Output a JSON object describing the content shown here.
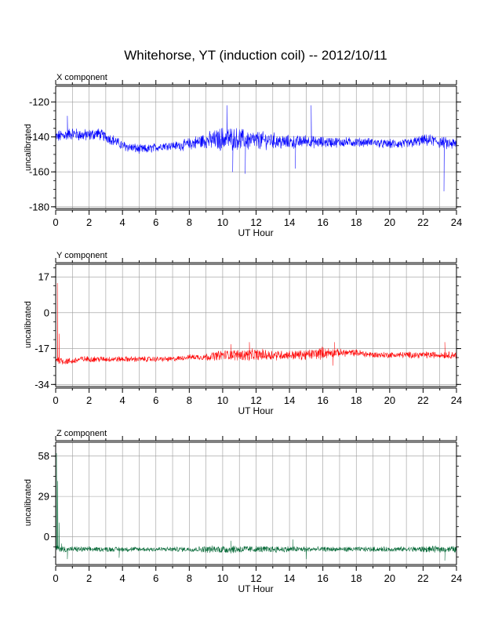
{
  "title": "Whitehorse, YT (induction coil) -- 2012/10/11",
  "chart_data": [
    {
      "type": "line",
      "panel_label": "X component",
      "xlabel": "UT Hour",
      "ylabel": "uncalibrated",
      "xlim": [
        0,
        24
      ],
      "ylim": [
        -181,
        -111
      ],
      "xticks": [
        0,
        2,
        4,
        6,
        8,
        10,
        12,
        14,
        16,
        18,
        20,
        22,
        24
      ],
      "yticks": [
        -120,
        -140,
        -160,
        -180
      ],
      "grid": true,
      "color": "#0000ff",
      "trend": {
        "x": [
          0,
          0.5,
          1,
          1.5,
          2,
          2.5,
          3,
          3.5,
          4,
          4.5,
          5,
          5.5,
          6,
          6.5,
          7,
          7.5,
          8,
          8.5,
          9,
          9.5,
          10,
          10.5,
          11,
          11.5,
          12,
          12.5,
          13,
          13.5,
          14,
          14.5,
          15,
          15.5,
          16,
          16.5,
          17,
          17.5,
          18,
          18.5,
          19,
          19.5,
          20,
          20.5,
          21,
          21.5,
          22,
          22.5,
          23,
          23.5,
          24
        ],
        "y": [
          -140,
          -139,
          -138,
          -139,
          -139,
          -138,
          -140,
          -142,
          -145,
          -146,
          -147,
          -147,
          -146,
          -145,
          -145,
          -145,
          -144,
          -143,
          -142,
          -142,
          -141,
          -141,
          -141,
          -142,
          -142,
          -142,
          -142,
          -143,
          -143,
          -143,
          -142,
          -143,
          -143,
          -143,
          -143,
          -143,
          -143,
          -143,
          -143,
          -144,
          -144,
          -144,
          -144,
          -143,
          -142,
          -142,
          -143,
          -144,
          -144
        ]
      },
      "noise_amplitude": {
        "x": [
          0,
          2,
          4,
          7,
          9,
          10,
          11.5,
          13,
          15,
          17,
          19,
          21,
          23,
          24
        ],
        "a": [
          3,
          3,
          2.5,
          2,
          4,
          6,
          5,
          4,
          3,
          2.5,
          2,
          2.5,
          3,
          3
        ]
      },
      "spikes": [
        {
          "x": 0.7,
          "y": -128
        },
        {
          "x": 10.25,
          "y": -122
        },
        {
          "x": 10.6,
          "y": -160
        },
        {
          "x": 11.35,
          "y": -161
        },
        {
          "x": 14.35,
          "y": -158
        },
        {
          "x": 15.3,
          "y": -122
        },
        {
          "x": 23.25,
          "y": -171
        }
      ]
    },
    {
      "type": "line",
      "panel_label": "Y component",
      "xlabel": "UT Hour",
      "ylabel": "uncalibrated",
      "xlim": [
        0,
        24
      ],
      "ylim": [
        -35,
        23
      ],
      "xticks": [
        0,
        2,
        4,
        6,
        8,
        10,
        12,
        14,
        16,
        18,
        20,
        22,
        24
      ],
      "yticks": [
        17,
        0,
        -17,
        -34
      ],
      "grid": true,
      "color": "#ff0000",
      "trend": {
        "x": [
          0,
          0.5,
          1,
          1.5,
          2,
          3,
          4,
          5,
          6,
          7,
          8,
          9,
          10,
          11,
          12,
          13,
          14,
          15,
          16,
          17,
          18,
          19,
          20,
          21,
          22,
          23,
          24
        ],
        "y": [
          -22,
          -23,
          -23,
          -22,
          -22,
          -22,
          -22,
          -22,
          -22,
          -22,
          -21,
          -21,
          -20,
          -20,
          -20,
          -20,
          -20,
          -20,
          -19,
          -19,
          -19,
          -20,
          -20,
          -20,
          -20,
          -20,
          -20
        ]
      },
      "noise_amplitude": {
        "x": [
          0,
          2,
          8,
          10,
          12,
          14,
          16,
          17,
          20,
          24
        ],
        "a": [
          1.5,
          1.2,
          1.0,
          2.0,
          2.5,
          1.8,
          2.5,
          1.5,
          1.2,
          1.5
        ]
      },
      "spikes": [
        {
          "x": 0.1,
          "y": 14
        },
        {
          "x": 0.2,
          "y": -10
        },
        {
          "x": 10.5,
          "y": -15
        },
        {
          "x": 11.6,
          "y": -14
        },
        {
          "x": 16.6,
          "y": -25
        },
        {
          "x": 16.7,
          "y": -14
        },
        {
          "x": 23.3,
          "y": -14
        }
      ]
    },
    {
      "type": "line",
      "panel_label": "Z component",
      "xlabel": "UT Hour",
      "ylabel": "uncalibrated",
      "xlim": [
        0,
        24
      ],
      "ylim": [
        -20,
        68
      ],
      "xticks": [
        0,
        2,
        4,
        6,
        8,
        10,
        12,
        14,
        16,
        18,
        20,
        22,
        24
      ],
      "yticks": [
        58,
        29,
        0
      ],
      "grid": true,
      "color": "#006633",
      "trend": {
        "x": [
          0,
          0.5,
          1,
          2,
          4,
          6,
          8,
          10,
          12,
          14,
          16,
          18,
          20,
          22,
          24
        ],
        "y": [
          -8,
          -9,
          -9,
          -9,
          -9,
          -9,
          -9,
          -9,
          -9,
          -9,
          -9,
          -9,
          -9,
          -9,
          -9
        ]
      },
      "noise_amplitude": {
        "x": [
          0,
          2,
          4,
          8,
          10,
          11,
          12,
          14,
          16,
          20,
          23,
          24
        ],
        "a": [
          2,
          1.5,
          1.5,
          1.5,
          2.5,
          2.5,
          2.0,
          2.0,
          1.5,
          1.5,
          2.0,
          2.0
        ]
      },
      "spikes": [
        {
          "x": 0.05,
          "y": 60
        },
        {
          "x": 0.12,
          "y": 40
        },
        {
          "x": 0.2,
          "y": 10
        },
        {
          "x": 0.35,
          "y": -5
        },
        {
          "x": 0.7,
          "y": -16
        },
        {
          "x": 3.8,
          "y": -15
        },
        {
          "x": 10.5,
          "y": -3
        },
        {
          "x": 14.2,
          "y": -2
        },
        {
          "x": 15.0,
          "y": -16
        },
        {
          "x": 23.3,
          "y": -17
        }
      ]
    }
  ]
}
